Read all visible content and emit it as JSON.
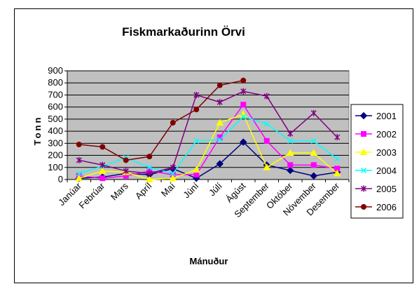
{
  "chart_data": {
    "type": "line",
    "title": "Fiskmarkaðurinn Örvi",
    "xlabel": "Mánuður",
    "ylabel": "Tonn",
    "ylim": [
      0,
      900
    ],
    "yticks": [
      "0",
      "100",
      "200",
      "300",
      "400",
      "500",
      "600",
      "700",
      "800",
      "900"
    ],
    "grid": true,
    "legend_position": "right",
    "plot_background": "#c0c0c0",
    "categories": [
      "Janúar",
      "Febrúar",
      "Mars",
      "Apríl",
      "Maí",
      "Júní",
      "Júlí",
      "Ágúst",
      "September",
      "Október",
      "Nóvember",
      "Desember"
    ],
    "series": [
      {
        "name": "2001",
        "color": "#000080",
        "marker": "diamond",
        "values": [
          10,
          20,
          50,
          40,
          90,
          10,
          130,
          310,
          120,
          75,
          30,
          60
        ]
      },
      {
        "name": "2002",
        "color": "#ff00ff",
        "marker": "square",
        "values": [
          30,
          10,
          30,
          70,
          40,
          40,
          350,
          620,
          320,
          120,
          120,
          90
        ]
      },
      {
        "name": "2003",
        "color": "#ffff00",
        "marker": "triangle",
        "values": [
          10,
          70,
          60,
          0,
          10,
          80,
          470,
          540,
          100,
          220,
          220,
          50
        ]
      },
      {
        "name": "2004",
        "color": "#00ffff",
        "marker": "x",
        "values": [
          50,
          110,
          180,
          100,
          50,
          320,
          330,
          520,
          460,
          320,
          320,
          170
        ]
      },
      {
        "name": "2005",
        "color": "#800080",
        "marker": "star",
        "values": [
          160,
          120,
          70,
          50,
          100,
          700,
          640,
          730,
          690,
          380,
          550,
          350
        ]
      },
      {
        "name": "2006",
        "color": "#800000",
        "marker": "circle",
        "values": [
          290,
          270,
          160,
          190,
          470,
          580,
          780,
          820,
          null,
          null,
          null,
          null
        ]
      }
    ]
  }
}
